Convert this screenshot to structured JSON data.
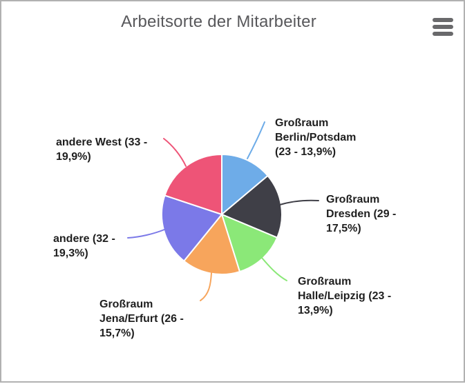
{
  "window": {
    "background": "#ffffff",
    "border_color": "#b1b1b1"
  },
  "header": {
    "title": "Arbeitsorte der Mitarbeiter",
    "menu_icon": "hamburger-menu-icon"
  },
  "chart_data": {
    "type": "pie",
    "title": "Arbeitsorte der Mitarbeiter",
    "total": 166,
    "start_angle_deg": 0,
    "direction": "clockwise",
    "legend_position": "callout-labels",
    "separator_color": "#ffffff",
    "slices": [
      {
        "name": "Großraum Berlin/Potsdam",
        "value": 23,
        "pct_label": "13,9%",
        "color": "#6EACE8",
        "display_text": "Großraum\nBerlin/Potsdam\n(23 - 13,9%)"
      },
      {
        "name": "Großraum Dresden",
        "value": 29,
        "pct_label": "17,5%",
        "color": "#3F3F47",
        "display_text": "Großraum\nDresden (29 -\n17,5%)"
      },
      {
        "name": "Großraum Halle/Leipzig",
        "value": 23,
        "pct_label": "13,9%",
        "color": "#8BE878",
        "display_text": "Großraum\nHalle/Leipzig (23 -\n13,9%)"
      },
      {
        "name": "Großraum Jena/Erfurt",
        "value": 26,
        "pct_label": "15,7%",
        "color": "#F7A55C",
        "display_text": "Großraum\nJena/Erfurt (26 -\n15,7%)"
      },
      {
        "name": "andere",
        "value": 32,
        "pct_label": "19,3%",
        "color": "#7B79E8",
        "display_text": "andere (32 -\n19,3%)"
      },
      {
        "name": "andere West",
        "value": 33,
        "pct_label": "19,9%",
        "color": "#EE5477",
        "display_text": "andere West (33 -\n19,9%)"
      }
    ]
  }
}
